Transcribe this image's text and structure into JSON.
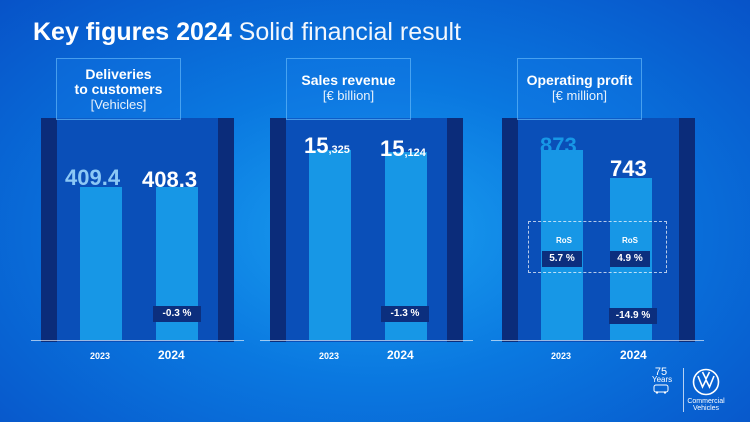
{
  "title": {
    "bold": "Key figures 2024",
    "light": "Solid financial result"
  },
  "panels": [
    {
      "heading_line1": "Deliveries",
      "heading_line2": "to customers",
      "unit": "[Vehicles]"
    },
    {
      "heading_line1": "Sales revenue",
      "heading_line2": "",
      "unit": "[€ billion]"
    },
    {
      "heading_line1": "Operating profit",
      "heading_line2": "",
      "unit": "[€ million]"
    }
  ],
  "labels": {
    "deliveries": {
      "v2023": "409.4",
      "v2024": "408.3",
      "change": "-0.3 %"
    },
    "revenue": {
      "v2023_main": "15",
      "v2023_sub": ",325",
      "v2024_main": "15",
      "v2024_sub": ",124",
      "change": "-1.3 %"
    },
    "profit": {
      "v2023": "873",
      "v2024": "743",
      "change": "-14.9 %"
    }
  },
  "years": {
    "first": "2023",
    "second": "2024"
  },
  "ros": {
    "label": "RoS",
    "v2023": "5.7 %",
    "v2024": "4.9 %"
  },
  "footer": {
    "years_num": "75",
    "years_word": "Years",
    "brand_line1": "Commercial",
    "brand_line2": "Vehicles"
  },
  "chart_data": [
    {
      "type": "bar",
      "title": "Deliveries to customers",
      "ylabel": "Vehicles",
      "categories": [
        "2023",
        "2024"
      ],
      "values": [
        409.4,
        408.3
      ],
      "change": "-0.3 %"
    },
    {
      "type": "bar",
      "title": "Sales revenue",
      "ylabel": "€ billion",
      "categories": [
        "2023",
        "2024"
      ],
      "values": [
        15.325,
        15.124
      ],
      "change": "-1.3 %"
    },
    {
      "type": "bar",
      "title": "Operating profit",
      "ylabel": "€ million",
      "categories": [
        "2023",
        "2024"
      ],
      "values": [
        873,
        743
      ],
      "change": "-14.9 %",
      "ros": [
        5.7,
        4.9
      ]
    }
  ],
  "colors": {
    "bar": "#1797e6",
    "panel_dark": "#0b2c7a",
    "panel_mid": "#0a4fb8",
    "badge": "#0c2f7e"
  }
}
